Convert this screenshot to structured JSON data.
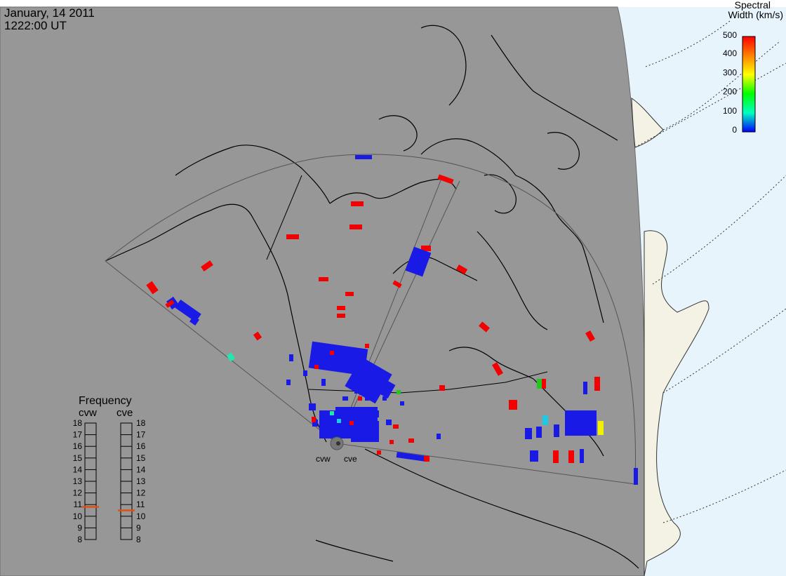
{
  "header": {
    "date": "January, 14 2011",
    "time": "1222:00 UT"
  },
  "colorbar": {
    "title_line1": "Spectral",
    "title_line2": "Width (km/s)",
    "ticks": [
      "500",
      "400",
      "300",
      "200",
      "100",
      "0"
    ],
    "gradient": [
      "#ff0000",
      "#ff8000",
      "#ffff00",
      "#00ff00",
      "#00ffc0",
      "#0000ff"
    ]
  },
  "frequency_panel": {
    "title": "Frequency",
    "radars": [
      {
        "name": "cvw",
        "value": 10.8,
        "ticks": [
          "18",
          "17",
          "16",
          "15",
          "14",
          "13",
          "12",
          "11",
          "10",
          "9",
          "8"
        ]
      },
      {
        "name": "cve",
        "value": 10.5,
        "ticks": [
          "18",
          "17",
          "16",
          "15",
          "14",
          "13",
          "12",
          "11",
          "10",
          "9",
          "8"
        ]
      }
    ],
    "marker_color": "#e05010"
  },
  "map": {
    "land_color": "#979797",
    "ocean_color": "#e8f4fc",
    "ice_color": "#f4f2e4",
    "radar_labels": [
      "cvw",
      "cve"
    ],
    "echo_colors": {
      "blue": "#1a1ae6",
      "red": "#f40000",
      "green": "#20c820",
      "cyan": "#20c8e8",
      "yellow": "#f0f000",
      "teal": "#20e8b0"
    }
  }
}
